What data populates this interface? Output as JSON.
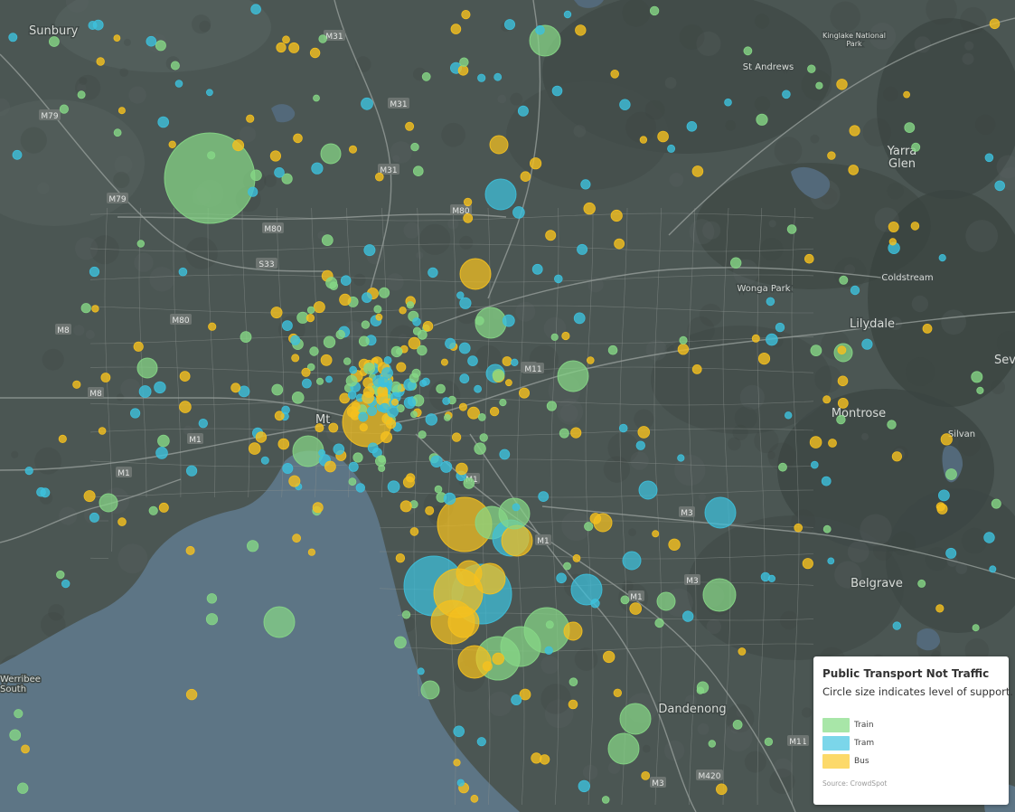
{
  "map": {
    "colors": {
      "land": "#4b5653",
      "water": "#5d7585",
      "road": "#8a918e",
      "train": "#86d786",
      "tram": "#3dc0dc",
      "bus": "#f5c11f"
    },
    "place_labels": [
      {
        "text": "Sunbury",
        "size": 13
      },
      {
        "text": "St Andrews",
        "size": 10
      },
      {
        "text": "Kinglake National Park",
        "size": 8
      },
      {
        "text": "Yarra Glen",
        "size": 13
      },
      {
        "text": "Lilydale",
        "size": 13
      },
      {
        "text": "Coldstream",
        "size": 10
      },
      {
        "text": "Wonga Park",
        "size": 10
      },
      {
        "text": "Montrose",
        "size": 13
      },
      {
        "text": "Silvan",
        "size": 10
      },
      {
        "text": "Belgrave",
        "size": 13
      },
      {
        "text": "Dandenong",
        "size": 13
      },
      {
        "text": "Mt",
        "size": 13
      },
      {
        "text": "Sev",
        "size": 13
      },
      {
        "text": "Werribee South",
        "size": 10
      }
    ],
    "road_labels": [
      "M31",
      "M31",
      "M31",
      "M79",
      "M79",
      "M80",
      "M80",
      "M80",
      "M8",
      "M8",
      "M1",
      "M1",
      "M1",
      "M1",
      "M3",
      "M3",
      "M3",
      "M1",
      "M1",
      "M420",
      "M3",
      "M1",
      "M11",
      "S33"
    ]
  },
  "legend": {
    "title": "Public Transport Not Traffic",
    "subtitle": "Circle size indicates level of support.",
    "items": [
      {
        "label": "Train",
        "color": "#a8e6a8"
      },
      {
        "label": "Tram",
        "color": "#7bd6ea"
      },
      {
        "label": "Bus",
        "color": "#fcd96a"
      }
    ],
    "source": "Source: CrowdSpot"
  }
}
